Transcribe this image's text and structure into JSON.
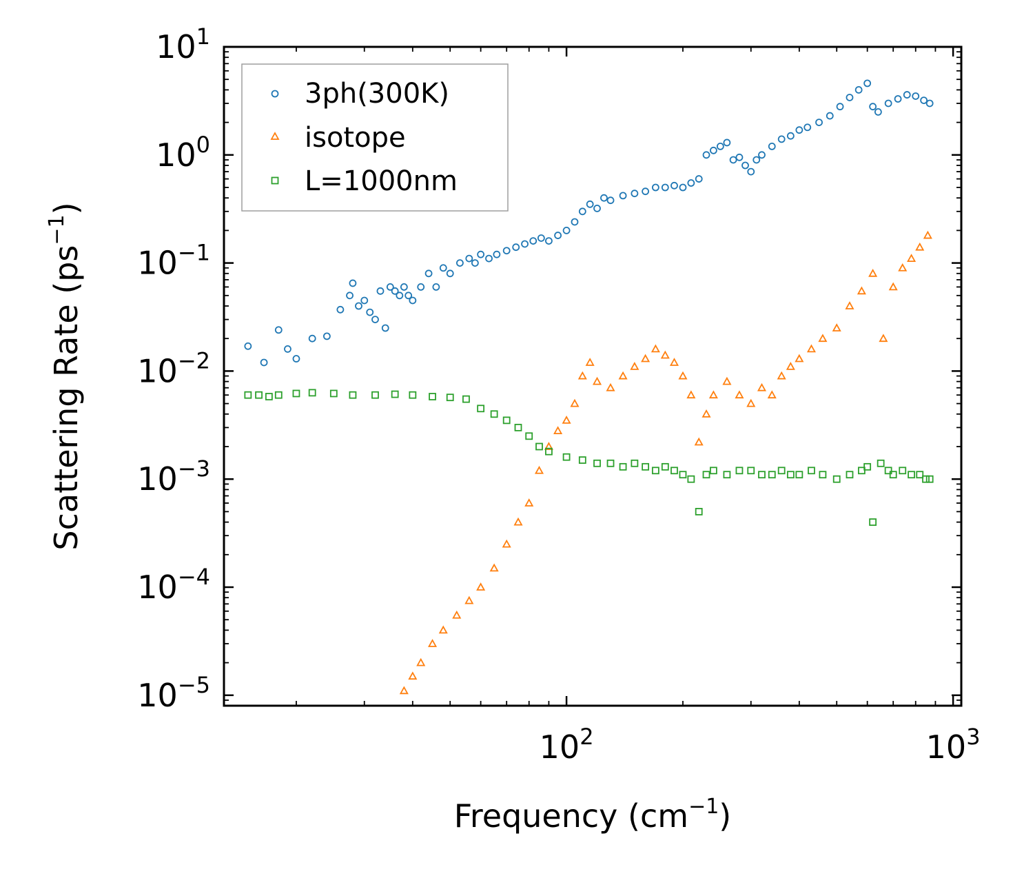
{
  "chart_data": {
    "type": "scatter",
    "xscale": "log",
    "yscale": "log",
    "xlim": [
      13,
      1050
    ],
    "ylim": [
      8e-06,
      10
    ],
    "xlabel": "Frequency (cm",
    "xlabel_sup": "−1",
    "xlabel_end": ")",
    "ylabel": "Scattering Rate (ps",
    "ylabel_sup": "−1",
    "ylabel_end": ")",
    "x_ticks": [
      {
        "value": 100,
        "base": "10",
        "exp": "2"
      },
      {
        "value": 1000,
        "base": "10",
        "exp": "3"
      }
    ],
    "y_ticks": [
      {
        "value": 10,
        "base": "10",
        "exp": "1"
      },
      {
        "value": 1,
        "base": "10",
        "exp": "0"
      },
      {
        "value": 0.1,
        "base": "10",
        "exp": "−1"
      },
      {
        "value": 0.01,
        "base": "10",
        "exp": "−2"
      },
      {
        "value": 0.001,
        "base": "10",
        "exp": "−3"
      },
      {
        "value": 0.0001,
        "base": "10",
        "exp": "−4"
      },
      {
        "value": 1e-05,
        "base": "10",
        "exp": "−5"
      }
    ],
    "legend_position": "top-left",
    "series": [
      {
        "name": "3ph(300K)",
        "marker": "circle",
        "color": "#1f77b4",
        "x": [
          15,
          16.5,
          18,
          19,
          20,
          22,
          24,
          26,
          27.5,
          28,
          29,
          30,
          31,
          32,
          33,
          34,
          35,
          36,
          37,
          38,
          39,
          40,
          42,
          44,
          46,
          48,
          50,
          53,
          56,
          58,
          60,
          63,
          66,
          70,
          74,
          78,
          82,
          86,
          90,
          95,
          100,
          105,
          110,
          115,
          120,
          125,
          130,
          140,
          150,
          160,
          170,
          180,
          190,
          200,
          210,
          220,
          230,
          240,
          250,
          260,
          270,
          280,
          290,
          300,
          310,
          320,
          340,
          360,
          380,
          400,
          420,
          450,
          480,
          510,
          540,
          570,
          600,
          620,
          640,
          680,
          720,
          760,
          800,
          840,
          870
        ],
        "y": [
          0.017,
          0.012,
          0.024,
          0.016,
          0.013,
          0.02,
          0.021,
          0.037,
          0.05,
          0.065,
          0.04,
          0.045,
          0.035,
          0.03,
          0.055,
          0.025,
          0.06,
          0.055,
          0.05,
          0.06,
          0.05,
          0.045,
          0.06,
          0.08,
          0.06,
          0.09,
          0.08,
          0.1,
          0.11,
          0.1,
          0.12,
          0.11,
          0.12,
          0.13,
          0.14,
          0.15,
          0.16,
          0.17,
          0.16,
          0.18,
          0.2,
          0.24,
          0.3,
          0.35,
          0.32,
          0.4,
          0.38,
          0.42,
          0.44,
          0.46,
          0.5,
          0.5,
          0.52,
          0.5,
          0.55,
          0.6,
          1.0,
          1.1,
          1.2,
          1.3,
          0.9,
          0.95,
          0.8,
          0.7,
          0.9,
          1.0,
          1.2,
          1.4,
          1.5,
          1.7,
          1.8,
          2.0,
          2.3,
          2.8,
          3.4,
          4.0,
          4.6,
          2.8,
          2.5,
          3.0,
          3.3,
          3.6,
          3.5,
          3.2,
          3.0
        ]
      },
      {
        "name": "isotope",
        "marker": "triangle",
        "color": "#ff7f0e",
        "x": [
          38,
          40,
          42,
          45,
          48,
          52,
          56,
          60,
          65,
          70,
          75,
          80,
          85,
          90,
          95,
          100,
          105,
          110,
          115,
          120,
          130,
          140,
          150,
          160,
          170,
          180,
          190,
          200,
          210,
          220,
          230,
          240,
          260,
          280,
          300,
          320,
          340,
          360,
          380,
          400,
          430,
          460,
          500,
          540,
          580,
          620,
          660,
          700,
          740,
          780,
          820,
          860
        ],
        "y": [
          1.1e-05,
          1.5e-05,
          2e-05,
          3e-05,
          4e-05,
          5.5e-05,
          7.5e-05,
          0.0001,
          0.00015,
          0.00025,
          0.0004,
          0.0006,
          0.0012,
          0.002,
          0.0028,
          0.0035,
          0.005,
          0.009,
          0.012,
          0.008,
          0.007,
          0.009,
          0.011,
          0.013,
          0.016,
          0.014,
          0.012,
          0.009,
          0.006,
          0.0022,
          0.004,
          0.006,
          0.008,
          0.006,
          0.005,
          0.007,
          0.006,
          0.009,
          0.011,
          0.013,
          0.016,
          0.02,
          0.025,
          0.04,
          0.055,
          0.08,
          0.02,
          0.06,
          0.09,
          0.11,
          0.14,
          0.18
        ]
      },
      {
        "name": "L=1000nm",
        "marker": "square",
        "color": "#2ca02c",
        "x": [
          15,
          16,
          17,
          18,
          20,
          22,
          25,
          28,
          32,
          36,
          40,
          45,
          50,
          55,
          60,
          65,
          70,
          75,
          80,
          85,
          90,
          100,
          110,
          120,
          130,
          140,
          150,
          160,
          170,
          180,
          190,
          200,
          210,
          220,
          230,
          240,
          260,
          280,
          300,
          320,
          340,
          360,
          380,
          400,
          430,
          460,
          500,
          540,
          580,
          600,
          620,
          650,
          680,
          700,
          740,
          780,
          820,
          850,
          870
        ],
        "y": [
          0.006,
          0.006,
          0.0058,
          0.006,
          0.0062,
          0.0063,
          0.0062,
          0.006,
          0.006,
          0.0061,
          0.006,
          0.0058,
          0.0057,
          0.0055,
          0.0045,
          0.004,
          0.0035,
          0.003,
          0.0025,
          0.002,
          0.0018,
          0.0016,
          0.0015,
          0.0014,
          0.0014,
          0.0013,
          0.0014,
          0.0013,
          0.0012,
          0.0013,
          0.0012,
          0.0011,
          0.001,
          0.0005,
          0.0011,
          0.0012,
          0.0011,
          0.0012,
          0.0012,
          0.0011,
          0.0011,
          0.0012,
          0.0011,
          0.0011,
          0.0012,
          0.0011,
          0.001,
          0.0011,
          0.0012,
          0.0013,
          0.0004,
          0.0014,
          0.0012,
          0.0011,
          0.0012,
          0.0011,
          0.0011,
          0.001,
          0.001
        ]
      }
    ]
  }
}
